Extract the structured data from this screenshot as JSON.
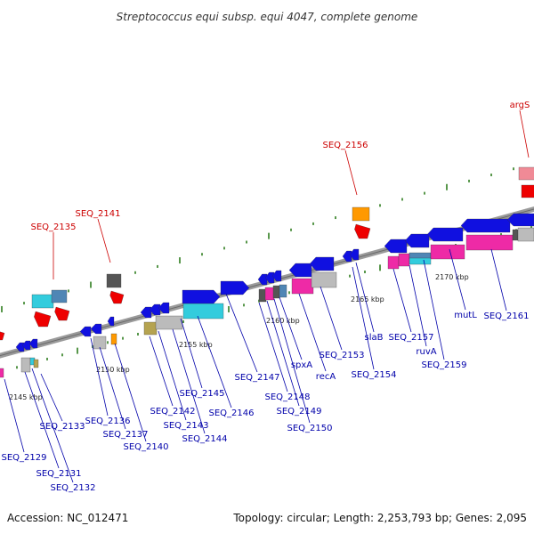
{
  "title": "Streptococcus equi subsp. equi 4047, complete genome",
  "footer": {
    "accession": "Accession: NC_012471",
    "stats": "Topology: circular; Length: 2,253,793 bp; Genes: 2,095"
  },
  "kbp_labels": [
    "2145 kbp",
    "2150 kbp",
    "2155 kbp",
    "2160 kbp",
    "2165 kbp",
    "2170 kbp"
  ],
  "gene_labels_top": [
    "SEQ_2135",
    "SEQ_2141",
    "SEQ_2156",
    "argS"
  ],
  "gene_labels_bottom": [
    "SEQ_2129",
    "SEQ_2131",
    "SEQ_2132",
    "SEQ_2133",
    "SEQ_2136",
    "SEQ_2137",
    "SEQ_2140",
    "SEQ_2142",
    "SEQ_2143",
    "SEQ_2144",
    "SEQ_2145",
    "SEQ_2146",
    "SEQ_2147",
    "SEQ_2148",
    "SEQ_2149",
    "SEQ_2150",
    "spxA",
    "recA",
    "SEQ_2153",
    "SEQ_2154",
    "slaB",
    "SEQ_2157",
    "ruvA",
    "SEQ_2159",
    "mutL",
    "SEQ_2161"
  ],
  "colors": {
    "backbone": "#9a9a9a",
    "tick": "#2e7d1e",
    "forward_label": "#cc0000",
    "reverse_label": "#0000aa",
    "gene_blue": "#1010e0",
    "gene_red": "#ee0000",
    "magenta": "#ee2aa6",
    "cyan": "#33ccdd",
    "orange": "#ff9900",
    "pink": "#f08a96",
    "gray": "#bbbbbb",
    "dark_gray": "#555555",
    "olive": "#b5a350",
    "steel": "#4f86b5"
  }
}
